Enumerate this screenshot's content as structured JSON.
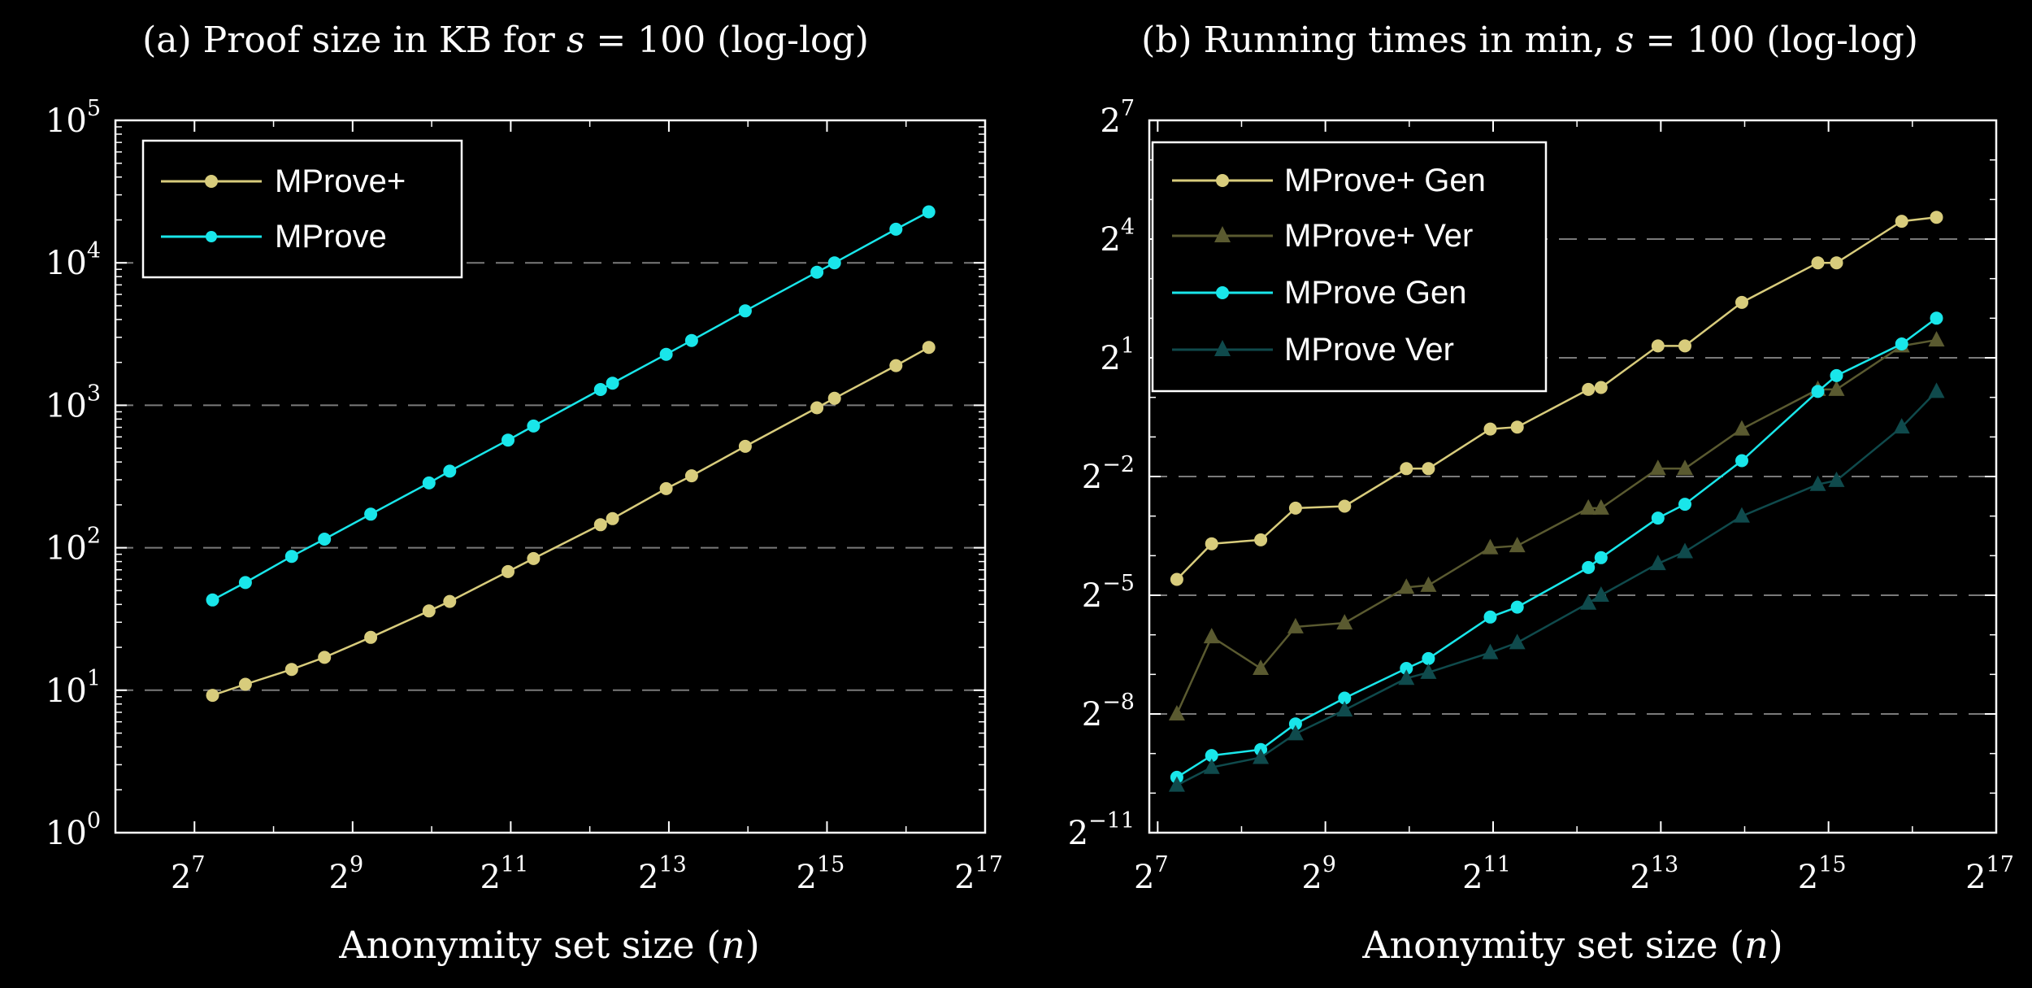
{
  "chart_data": [
    {
      "type": "line",
      "id": "a",
      "title": "(a) Proof size in KB for s = 100 (log-log)",
      "title_parts": {
        "pre": "(a) Proof size in KB for ",
        "var": "s",
        "post": " = 100 (log-log)"
      },
      "xlabel": "Anonymity set size (n)",
      "xlabel_parts": {
        "pre": "Anonymity set size (",
        "var": "n",
        "post": ")"
      },
      "ylabel": "",
      "x_scale": "log2",
      "y_scale": "log10",
      "xlim_exp": [
        6,
        17
      ],
      "ylim_exp": [
        0,
        5
      ],
      "x_ticks": [
        7,
        9,
        11,
        13,
        15,
        17
      ],
      "y_ticks": [
        0,
        1,
        2,
        3,
        4,
        5
      ],
      "x_tick_base": "2",
      "y_tick_base": "10",
      "y_grid": [
        1,
        2,
        3,
        4
      ],
      "legend_position": "top-left",
      "x": [
        150,
        200,
        300,
        400,
        600,
        1000,
        1200,
        2000,
        2500,
        4500,
        5000,
        8000,
        10000,
        16000,
        30000,
        35000,
        60000,
        80000
      ],
      "series": [
        {
          "name": "MProve+",
          "color": "#d8cc7c",
          "marker": "circle",
          "values": [
            9.2,
            11,
            14,
            17,
            23.5,
            36,
            42,
            68,
            84,
            145,
            160,
            260,
            320,
            515,
            960,
            1120,
            1900,
            2550
          ]
        },
        {
          "name": "MProve",
          "color": "#19e6ea",
          "marker": "circle",
          "values": [
            43,
            57,
            87,
            115,
            172,
            285,
            345,
            570,
            715,
            1290,
            1430,
            2280,
            2850,
            4600,
            8600,
            10000,
            17200,
            22800
          ]
        }
      ]
    },
    {
      "type": "line",
      "id": "b",
      "title": "(b) Running times in min, s = 100 (log-log)",
      "title_parts": {
        "pre": "(b) Running times in min, ",
        "var": "s",
        "post": " = 100 (log-log)"
      },
      "xlabel": "Anonymity set size (n)",
      "xlabel_parts": {
        "pre": "Anonymity set size (",
        "var": "n",
        "post": ")"
      },
      "ylabel": "",
      "x_scale": "log2",
      "y_scale": "log2",
      "xlim_exp": [
        6.9,
        17
      ],
      "ylim_exp": [
        -11,
        7
      ],
      "x_ticks": [
        7,
        9,
        11,
        13,
        15,
        17
      ],
      "y_ticks": [
        -11,
        -8,
        -5,
        -2,
        1,
        4,
        7
      ],
      "x_tick_base": "2",
      "y_tick_base": "2",
      "y_grid": [
        -8,
        -5,
        -2,
        1,
        4
      ],
      "legend_position": "top-left",
      "x": [
        150,
        200,
        300,
        400,
        600,
        1000,
        1200,
        2000,
        2500,
        4500,
        5000,
        8000,
        10000,
        16000,
        30000,
        35000,
        60000,
        80000
      ],
      "series": [
        {
          "name": "MProve+ Gen",
          "color": "#d8cc7c",
          "marker": "circle",
          "log2_values": [
            -4.6,
            -3.7,
            -3.6,
            -2.8,
            -2.75,
            -1.8,
            -1.8,
            -0.8,
            -0.75,
            0.2,
            0.25,
            1.3,
            1.3,
            2.4,
            3.4,
            3.4,
            4.45,
            4.55
          ]
        },
        {
          "name": "MProve+ Ver",
          "color": "#5a5a30",
          "marker": "triangle",
          "log2_values": [
            -8,
            -6.05,
            -6.85,
            -5.8,
            -5.7,
            -4.8,
            -4.75,
            -3.8,
            -3.75,
            -2.8,
            -2.8,
            -1.8,
            -1.8,
            -0.8,
            0.2,
            0.2,
            1.3,
            1.45
          ]
        },
        {
          "name": "MProve Gen",
          "color": "#19e6ea",
          "marker": "circle",
          "log2_values": [
            -9.6,
            -9.05,
            -8.9,
            -8.25,
            -7.6,
            -6.85,
            -6.6,
            -5.55,
            -5.3,
            -4.3,
            -4.05,
            -3.05,
            -2.7,
            -1.6,
            0.15,
            0.55,
            1.35,
            2.0
          ]
        },
        {
          "name": "MProve Ver",
          "color": "#0f4a4c",
          "marker": "triangle",
          "log2_values": [
            -9.8,
            -9.35,
            -9.1,
            -8.5,
            -7.9,
            -7.1,
            -6.95,
            -6.45,
            -6.2,
            -5.2,
            -5.0,
            -4.2,
            -3.9,
            -3.0,
            -2.2,
            -2.1,
            -0.75,
            0.15
          ]
        }
      ]
    }
  ]
}
